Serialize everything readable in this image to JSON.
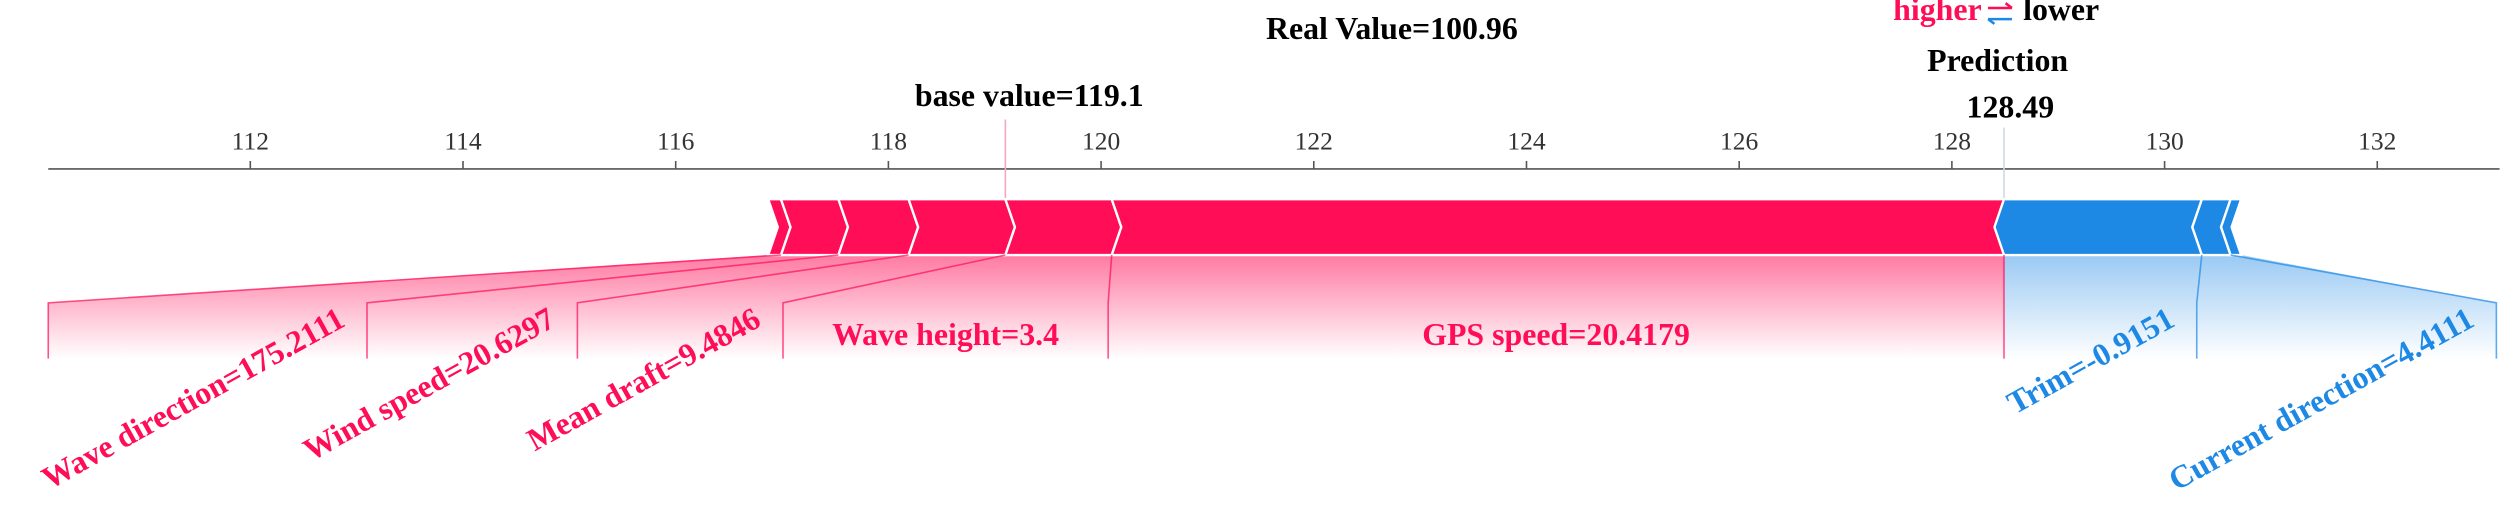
{
  "chart_data": {
    "type": "force",
    "annotation": "Real Value=100.96",
    "prediction_label": "Prediction",
    "prediction": 128.49,
    "base_value_label": "base value=119.1",
    "base_value": 119.1,
    "xlim": [
      110.1,
      133.15
    ],
    "xticks": [
      112,
      114,
      116,
      118,
      120,
      122,
      124,
      126,
      128,
      130,
      132
    ],
    "series": [
      {
        "name": "higher",
        "color": "#ff0d57",
        "labels": [
          "GPS speed=20.4179",
          "Wave height=3.4",
          "Mean draft=9.4846",
          "Wind speed=20.6297",
          "Wave direction=175.2111",
          null
        ],
        "values": [
          8.39,
          1.0,
          0.91,
          0.66,
          0.54,
          0.12
        ]
      },
      {
        "name": "lower",
        "color": "#1e88e5",
        "labels": [
          "Trim=-0.9151",
          "Current direction=4.4111",
          null
        ],
        "values": [
          1.86,
          0.27,
          0.1
        ]
      }
    ]
  }
}
